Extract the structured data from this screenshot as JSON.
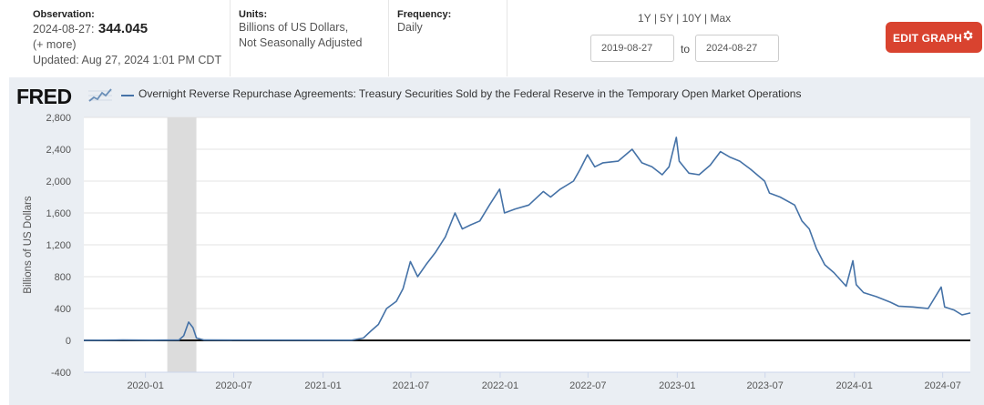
{
  "header": {
    "observation": {
      "label": "Observation:",
      "date": "2024-08-27:",
      "value": "344.045",
      "more": "(+ more)",
      "updated": "Updated: Aug 27, 2024 1:01 PM CDT"
    },
    "units": {
      "label": "Units:",
      "line1": "Billions of US Dollars,",
      "line2": "Not Seasonally Adjusted"
    },
    "frequency": {
      "label": "Frequency:",
      "value": "Daily"
    },
    "quick_ranges": [
      "1Y",
      "5Y",
      "10Y",
      "Max"
    ],
    "separator": "|",
    "date_from": "2019-08-27",
    "date_to_label": "to",
    "date_to": "2024-08-27",
    "edit_button": "EDIT GRAPH"
  },
  "colors": {
    "series": "#4572a7",
    "accent": "#d9432f",
    "recession": "#dcdcdc"
  },
  "chart_data": {
    "type": "line",
    "title": "Overnight Reverse Repurchase Agreements: Treasury Securities Sold by the Federal Reserve in the Temporary Open Market Operations",
    "logo": "FRED",
    "ylabel": "Billions of US Dollars",
    "xlabel": "",
    "ylim": [
      -400,
      2800
    ],
    "yticks": [
      "2,800",
      "2,400",
      "2,000",
      "1,600",
      "1,200",
      "800",
      "400",
      "0",
      "-400"
    ],
    "ytick_values": [
      2800,
      2400,
      2000,
      1600,
      1200,
      800,
      400,
      0,
      -400
    ],
    "xlim": [
      "2019-08-27",
      "2024-08-27"
    ],
    "xticks": [
      "2020-01",
      "2020-07",
      "2021-01",
      "2021-07",
      "2022-01",
      "2022-07",
      "2023-01",
      "2023-07",
      "2024-01",
      "2024-07"
    ],
    "xtick_dates": [
      "2020-01-01",
      "2020-07-01",
      "2021-01-01",
      "2021-07-01",
      "2022-01-01",
      "2022-07-01",
      "2023-01-01",
      "2023-07-01",
      "2024-01-01",
      "2024-07-01"
    ],
    "recession": [
      "2020-02-15",
      "2020-04-15"
    ],
    "grid": true,
    "legend": "top-left",
    "series": [
      {
        "name": "Overnight Reverse Repurchase Agreements: Treasury Securities Sold by the Federal Reserve in the Temporary Open Market Operations",
        "points": [
          [
            "2019-08-27",
            1
          ],
          [
            "2019-11-15",
            5
          ],
          [
            "2020-01-15",
            2
          ],
          [
            "2020-03-10",
            5
          ],
          [
            "2020-03-20",
            60
          ],
          [
            "2020-03-30",
            230
          ],
          [
            "2020-04-08",
            160
          ],
          [
            "2020-04-15",
            30
          ],
          [
            "2020-05-01",
            5
          ],
          [
            "2021-03-01",
            2
          ],
          [
            "2021-03-25",
            30
          ],
          [
            "2021-04-10",
            120
          ],
          [
            "2021-04-25",
            200
          ],
          [
            "2021-05-12",
            400
          ],
          [
            "2021-06-01",
            490
          ],
          [
            "2021-06-15",
            650
          ],
          [
            "2021-06-30",
            990
          ],
          [
            "2021-07-15",
            800
          ],
          [
            "2021-08-01",
            950
          ],
          [
            "2021-08-20",
            1100
          ],
          [
            "2021-09-10",
            1300
          ],
          [
            "2021-09-30",
            1600
          ],
          [
            "2021-10-15",
            1400
          ],
          [
            "2021-11-01",
            1450
          ],
          [
            "2021-11-20",
            1500
          ],
          [
            "2021-12-10",
            1700
          ],
          [
            "2021-12-31",
            1900
          ],
          [
            "2022-01-10",
            1600
          ],
          [
            "2022-02-01",
            1650
          ],
          [
            "2022-03-01",
            1700
          ],
          [
            "2022-03-31",
            1870
          ],
          [
            "2022-04-15",
            1800
          ],
          [
            "2022-05-05",
            1900
          ],
          [
            "2022-06-01",
            2000
          ],
          [
            "2022-06-15",
            2150
          ],
          [
            "2022-06-30",
            2330
          ],
          [
            "2022-07-15",
            2180
          ],
          [
            "2022-08-01",
            2230
          ],
          [
            "2022-09-01",
            2250
          ],
          [
            "2022-09-30",
            2400
          ],
          [
            "2022-10-20",
            2230
          ],
          [
            "2022-11-10",
            2180
          ],
          [
            "2022-12-01",
            2080
          ],
          [
            "2022-12-15",
            2180
          ],
          [
            "2022-12-30",
            2550
          ],
          [
            "2023-01-05",
            2250
          ],
          [
            "2023-01-25",
            2100
          ],
          [
            "2023-02-15",
            2080
          ],
          [
            "2023-03-10",
            2200
          ],
          [
            "2023-03-31",
            2370
          ],
          [
            "2023-04-20",
            2300
          ],
          [
            "2023-05-10",
            2250
          ],
          [
            "2023-06-01",
            2150
          ],
          [
            "2023-06-30",
            2000
          ],
          [
            "2023-07-10",
            1850
          ],
          [
            "2023-08-01",
            1800
          ],
          [
            "2023-08-31",
            1700
          ],
          [
            "2023-09-15",
            1500
          ],
          [
            "2023-09-30",
            1400
          ],
          [
            "2023-10-15",
            1150
          ],
          [
            "2023-11-01",
            950
          ],
          [
            "2023-11-20",
            850
          ],
          [
            "2023-12-15",
            680
          ],
          [
            "2023-12-29",
            1000
          ],
          [
            "2024-01-05",
            700
          ],
          [
            "2024-01-20",
            600
          ],
          [
            "2024-02-15",
            550
          ],
          [
            "2024-03-15",
            480
          ],
          [
            "2024-04-01",
            430
          ],
          [
            "2024-05-01",
            420
          ],
          [
            "2024-06-01",
            400
          ],
          [
            "2024-06-28",
            670
          ],
          [
            "2024-07-05",
            420
          ],
          [
            "2024-07-25",
            380
          ],
          [
            "2024-08-10",
            320
          ],
          [
            "2024-08-27",
            344.045
          ]
        ]
      }
    ]
  }
}
